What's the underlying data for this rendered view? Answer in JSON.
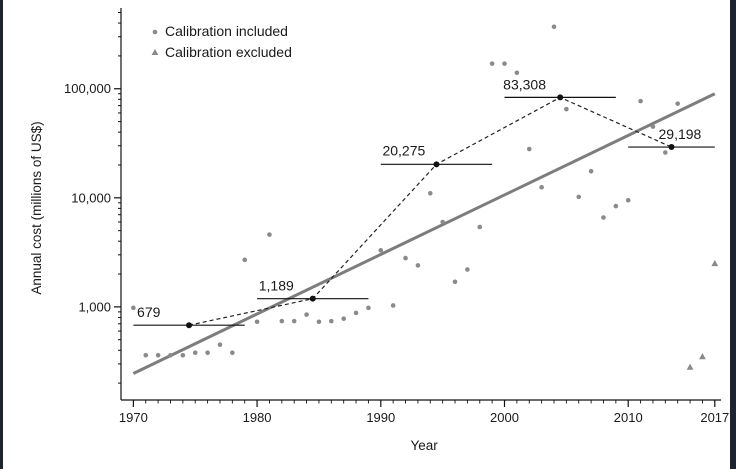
{
  "chart_data": {
    "type": "scatter",
    "xlabel": "Year",
    "ylabel": "Annual cost (millions of US$)",
    "x_ticks": [
      "1970",
      "1980",
      "1990",
      "2000",
      "2010",
      "2017"
    ],
    "y_ticks": [
      "1,000",
      "10,000",
      "100,000"
    ],
    "y_scale": "log",
    "xlim": [
      1969,
      2017.5
    ],
    "ylim": [
      140,
      550000
    ],
    "legend": {
      "placement": "top-left",
      "entries": [
        {
          "label": "Calibration included",
          "marker": "circle"
        },
        {
          "label": "Calibration excluded",
          "marker": "triangle"
        }
      ]
    },
    "series": [
      {
        "name": "Calibration included",
        "marker": "circle",
        "points": [
          [
            1970,
            980
          ],
          [
            1971,
            360
          ],
          [
            1972,
            360
          ],
          [
            1973,
            360
          ],
          [
            1974,
            360
          ],
          [
            1975,
            380
          ],
          [
            1976,
            380
          ],
          [
            1977,
            450
          ],
          [
            1978,
            380
          ],
          [
            1979,
            2700
          ],
          [
            1980,
            730
          ],
          [
            1981,
            4600
          ],
          [
            1982,
            740
          ],
          [
            1983,
            740
          ],
          [
            1984,
            850
          ],
          [
            1985,
            730
          ],
          [
            1986,
            740
          ],
          [
            1987,
            780
          ],
          [
            1988,
            880
          ],
          [
            1989,
            980
          ],
          [
            1990,
            3300
          ],
          [
            1991,
            1030
          ],
          [
            1992,
            2800
          ],
          [
            1993,
            2400
          ],
          [
            1994,
            11000
          ],
          [
            1995,
            6000
          ],
          [
            1996,
            1700
          ],
          [
            1997,
            2200
          ],
          [
            1998,
            5400
          ],
          [
            1999,
            170000
          ],
          [
            2000,
            170000
          ],
          [
            2001,
            140000
          ],
          [
            2002,
            28000
          ],
          [
            2003,
            12500
          ],
          [
            2004,
            370000
          ],
          [
            2005,
            65000
          ],
          [
            2006,
            10200
          ],
          [
            2007,
            17500
          ],
          [
            2008,
            6600
          ],
          [
            2009,
            8400
          ],
          [
            2010,
            9500
          ],
          [
            2011,
            77000
          ],
          [
            2012,
            45000
          ],
          [
            2013,
            26000
          ],
          [
            2014,
            73000
          ]
        ]
      },
      {
        "name": "Calibration excluded",
        "marker": "triangle",
        "points": [
          [
            2015,
            280
          ],
          [
            2016,
            350
          ],
          [
            2017,
            2500
          ]
        ]
      }
    ],
    "decade_averages": [
      {
        "x_range": [
          1970,
          1979
        ],
        "center": 1974.5,
        "value": 679,
        "label": "679"
      },
      {
        "x_range": [
          1980,
          1989
        ],
        "center": 1984.5,
        "value": 1189,
        "label": "1,189"
      },
      {
        "x_range": [
          1990,
          1999
        ],
        "center": 1994.5,
        "value": 20275,
        "label": "20,275"
      },
      {
        "x_range": [
          2000,
          2009
        ],
        "center": 2004.5,
        "value": 83308,
        "label": "83,308"
      },
      {
        "x_range": [
          2010,
          2017
        ],
        "center": 2013.5,
        "value": 29198,
        "label": "29,198"
      }
    ],
    "trend_line": {
      "x": [
        1970,
        2017
      ],
      "y": [
        245,
        90000
      ],
      "color": "#7d7d7d"
    },
    "colors": {
      "points": "#8a8a8a",
      "trend": "#7d7d7d",
      "dashed": "#222222",
      "average_marker": "#111111"
    }
  }
}
